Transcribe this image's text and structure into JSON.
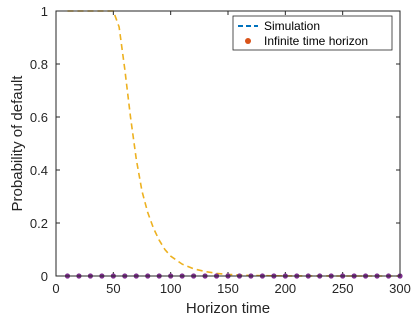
{
  "chart_data": {
    "type": "line",
    "xlabel": "Horizon time",
    "ylabel": "Probability of default",
    "xlim": [
      0,
      300
    ],
    "ylim": [
      0,
      1
    ],
    "xticks": [
      0,
      50,
      100,
      150,
      200,
      250,
      300
    ],
    "yticks": [
      0,
      0.2,
      0.4,
      0.6,
      0.8,
      1
    ],
    "ytick_labels": [
      "0",
      "0.2",
      "0.4",
      "0.6",
      "0.8",
      "1"
    ],
    "grid": false,
    "legend_position": "top-right",
    "series": [
      {
        "name": "Simulation",
        "style": "dashed-line",
        "color": "#EDB120",
        "legend_color": "#0072BD",
        "x": [
          10,
          20,
          30,
          40,
          45,
          50,
          55,
          60,
          65,
          70,
          75,
          80,
          85,
          90,
          95,
          100,
          110,
          120,
          130,
          140,
          150,
          160,
          170,
          180,
          200,
          250,
          300
        ],
        "y": [
          1,
          1,
          1,
          1,
          1,
          1,
          0.94,
          0.78,
          0.6,
          0.44,
          0.32,
          0.24,
          0.18,
          0.135,
          0.1,
          0.075,
          0.045,
          0.027,
          0.017,
          0.01,
          0.006,
          0.004,
          0.002,
          0.001,
          0.0005,
          0,
          0
        ]
      },
      {
        "name": "Infinite time horizon",
        "style": "markers",
        "color": "#7E2F8E",
        "legend_color": "#D95319",
        "x": [
          10,
          20,
          30,
          40,
          50,
          60,
          70,
          80,
          90,
          100,
          110,
          120,
          130,
          140,
          150,
          160,
          170,
          180,
          190,
          200,
          210,
          220,
          230,
          240,
          250,
          260,
          270,
          280,
          290,
          300
        ],
        "y": [
          0,
          0,
          0,
          0,
          0,
          0,
          0,
          0,
          0,
          0,
          0,
          0,
          0,
          0,
          0,
          0,
          0,
          0,
          0,
          0,
          0,
          0,
          0,
          0,
          0,
          0,
          0,
          0,
          0,
          0
        ]
      }
    ]
  }
}
